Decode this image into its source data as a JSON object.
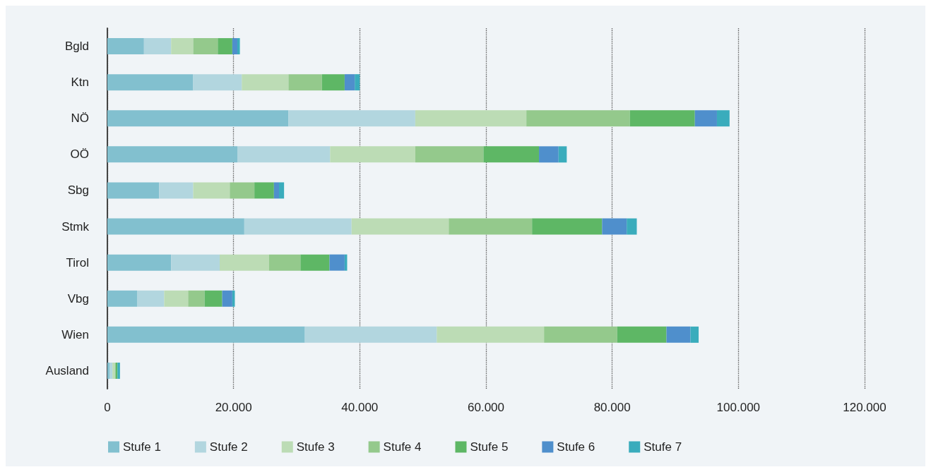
{
  "chart_data": {
    "type": "bar",
    "orientation": "horizontal",
    "stacked": true,
    "categories": [
      "Bgld",
      "Ktn",
      "NÖ",
      "OÖ",
      "Sbg",
      "Stmk",
      "Tirol",
      "Vbg",
      "Wien",
      "Ausland"
    ],
    "series": [
      {
        "name": "Stufe 1",
        "color": "#82c0cf",
        "values": [
          5800,
          13600,
          28700,
          20600,
          8200,
          21700,
          10100,
          4700,
          31300,
          400
        ]
      },
      {
        "name": "Stufe 2",
        "color": "#b2d6df",
        "values": [
          4300,
          7700,
          20100,
          14700,
          5400,
          17000,
          7700,
          4300,
          20900,
          400
        ]
      },
      {
        "name": "Stufe 3",
        "color": "#bcdcb5",
        "values": [
          3500,
          7400,
          17600,
          13500,
          5800,
          15400,
          7800,
          3800,
          17000,
          400
        ]
      },
      {
        "name": "Stufe 4",
        "color": "#94c98c",
        "values": [
          3900,
          5300,
          16400,
          10800,
          3900,
          13200,
          5000,
          2600,
          11600,
          100
        ]
      },
      {
        "name": "Stufe 5",
        "color": "#5eb765",
        "values": [
          2300,
          3600,
          10300,
          8800,
          3100,
          11100,
          4600,
          2800,
          7800,
          300
        ]
      },
      {
        "name": "Stufe 6",
        "color": "#4f8fcc",
        "values": [
          800,
          1600,
          3500,
          3100,
          800,
          3900,
          2400,
          1600,
          3800,
          0
        ]
      },
      {
        "name": "Stufe 7",
        "color": "#3aacbc",
        "values": [
          400,
          800,
          2000,
          1300,
          800,
          1600,
          400,
          400,
          1300,
          400
        ]
      }
    ],
    "xlim": [
      0,
      120000
    ],
    "xticks": [
      0,
      {
        "value": 20000,
        "label": "20.000"
      },
      {
        "value": 40000,
        "label": "40.000"
      },
      {
        "value": 60000,
        "label": "60.000"
      },
      {
        "value": 80000,
        "label": "80.000"
      },
      {
        "value": 100000,
        "label": "100.000"
      },
      {
        "value": 120000,
        "label": "120.000"
      }
    ],
    "grid": "x",
    "legend": "bottom"
  }
}
